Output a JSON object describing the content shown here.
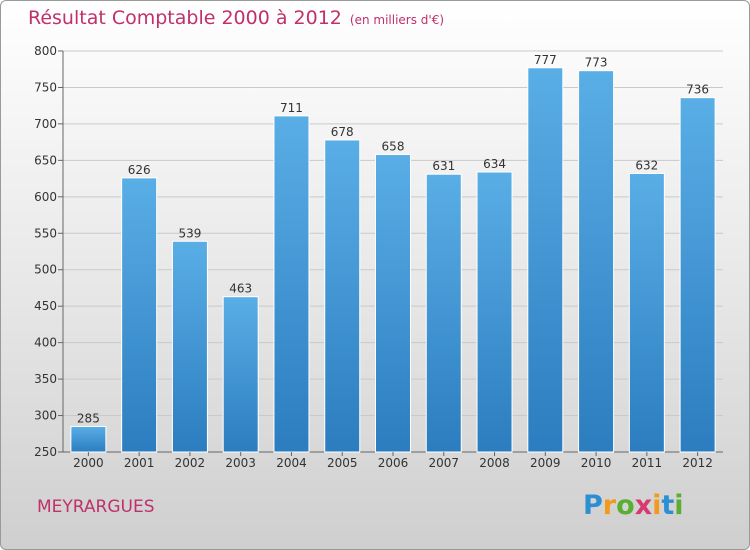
{
  "title": "Résultat Comptable 2000 à 2012",
  "unit_note": "(en milliers d'€)",
  "commune": "MEYRARGUES",
  "logo": {
    "letters": [
      "P",
      "r",
      "o",
      "x",
      "i",
      "t",
      "i"
    ],
    "colors": [
      "#2c8fd2",
      "#f39a1b",
      "#5aae32",
      "#d63a6f",
      "#f39a1b",
      "#2c8fd2",
      "#5aae32"
    ]
  },
  "colors": {
    "bar_top": "#5aaee6",
    "bar_bottom": "#2b7dbf",
    "title": "#c0306a"
  },
  "chart_data": {
    "type": "bar",
    "categories": [
      "2000",
      "2001",
      "2002",
      "2003",
      "2004",
      "2005",
      "2006",
      "2007",
      "2008",
      "2009",
      "2010",
      "2011",
      "2012"
    ],
    "values": [
      285,
      626,
      539,
      463,
      711,
      678,
      658,
      631,
      634,
      777,
      773,
      632,
      736
    ],
    "ylim": [
      250,
      800
    ],
    "yticks": [
      250,
      300,
      350,
      400,
      450,
      500,
      550,
      600,
      650,
      700,
      750,
      800
    ],
    "grid": true
  }
}
